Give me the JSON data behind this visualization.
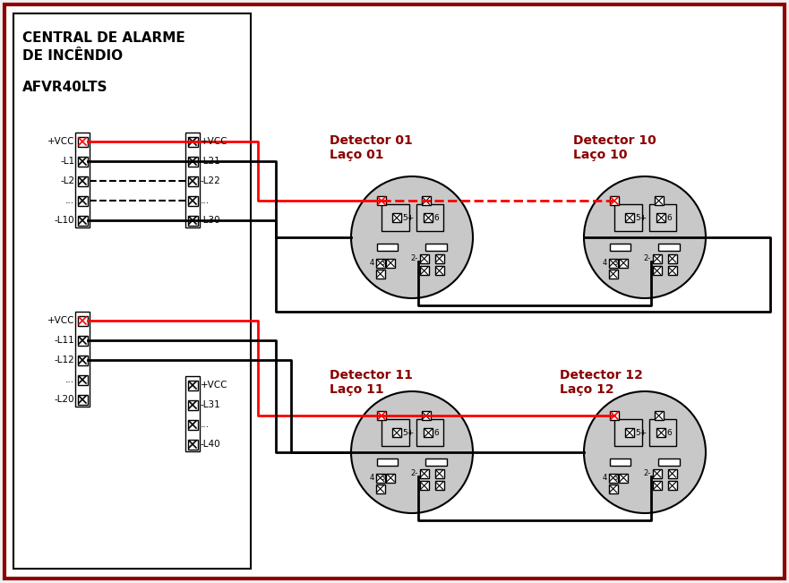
{
  "title": "CENTRAL DE ALARME\nDE INCÊNDIO",
  "model": "AFVR40LTS",
  "bg_color": "#f0f0f0",
  "border_color": "#8b0000",
  "panel_bg": "#ffffff",
  "panel_border": "#000000",
  "red_color": "#cc0000",
  "dark_red": "#8b0000",
  "black": "#000000",
  "gray": "#c8c8c8",
  "dark_gray": "#808080",
  "group1_terminals_left": [
    "+VCC",
    "-L1",
    "-L2",
    "...",
    "-L10"
  ],
  "group1_terminals_right": [
    "+VCC",
    "-L21",
    "-L22",
    "...",
    "-L30"
  ],
  "group2_terminals_left": [
    "+VCC",
    "-L11",
    "-L12",
    "...",
    "-L20"
  ],
  "group2_terminals_right": [
    "+VCC",
    "-L31",
    "...",
    "-L40"
  ]
}
